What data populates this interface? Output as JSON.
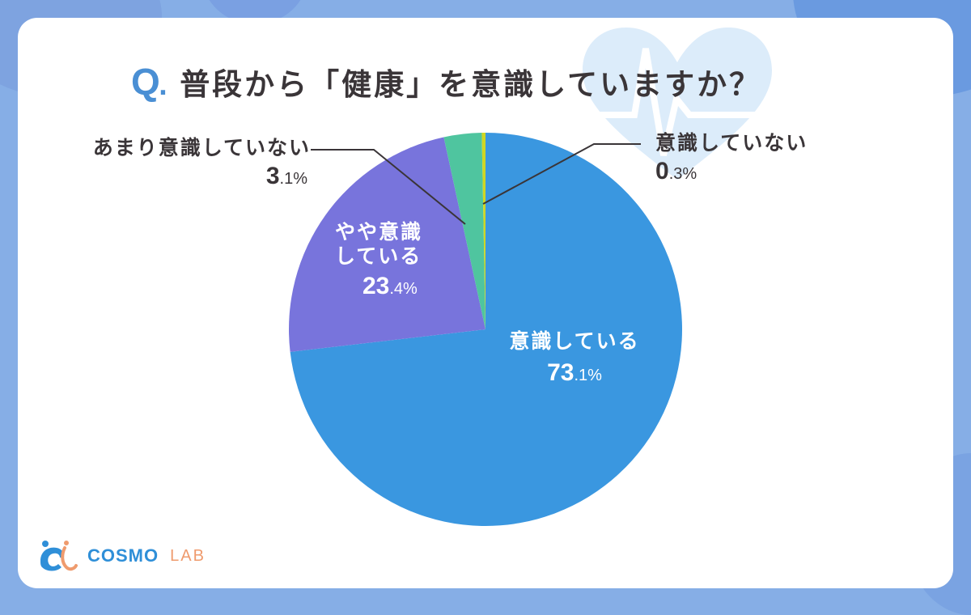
{
  "title": {
    "q_mark": "Q",
    "q_dot": ".",
    "text": "普段から「健康」を意識していますか？"
  },
  "chart_data": {
    "type": "pie",
    "title": "Q. 普段から「健康」を意識していますか？",
    "start_angle_deg": 0,
    "direction": "clockwise",
    "categories": [
      "意識している",
      "やや意識している",
      "あまり意識していない",
      "意識していない"
    ],
    "values": [
      73.1,
      23.4,
      3.1,
      0.3
    ],
    "unit": "%",
    "colors": [
      "#3a97e0",
      "#7874dc",
      "#4fc59f",
      "#cfd624"
    ],
    "legend": "none (direct labels)"
  },
  "labels": {
    "s0": {
      "name": "意識している",
      "int": "73",
      "dec": ".1%"
    },
    "s1": {
      "name1": "やや意識",
      "name2": "している",
      "int": "23",
      "dec": ".4%"
    },
    "s2": {
      "name": "あまり意識していない",
      "int": "3",
      "dec": ".1%"
    },
    "s3": {
      "name": "意識していない",
      "int": "0",
      "dec": ".3%"
    }
  },
  "logo": {
    "word1": "COSMO",
    "word2": "LAB"
  },
  "colors": {
    "background": "#86aee6",
    "card": "#ffffff",
    "accent": "#4a8fd4",
    "text": "#3a3538"
  }
}
